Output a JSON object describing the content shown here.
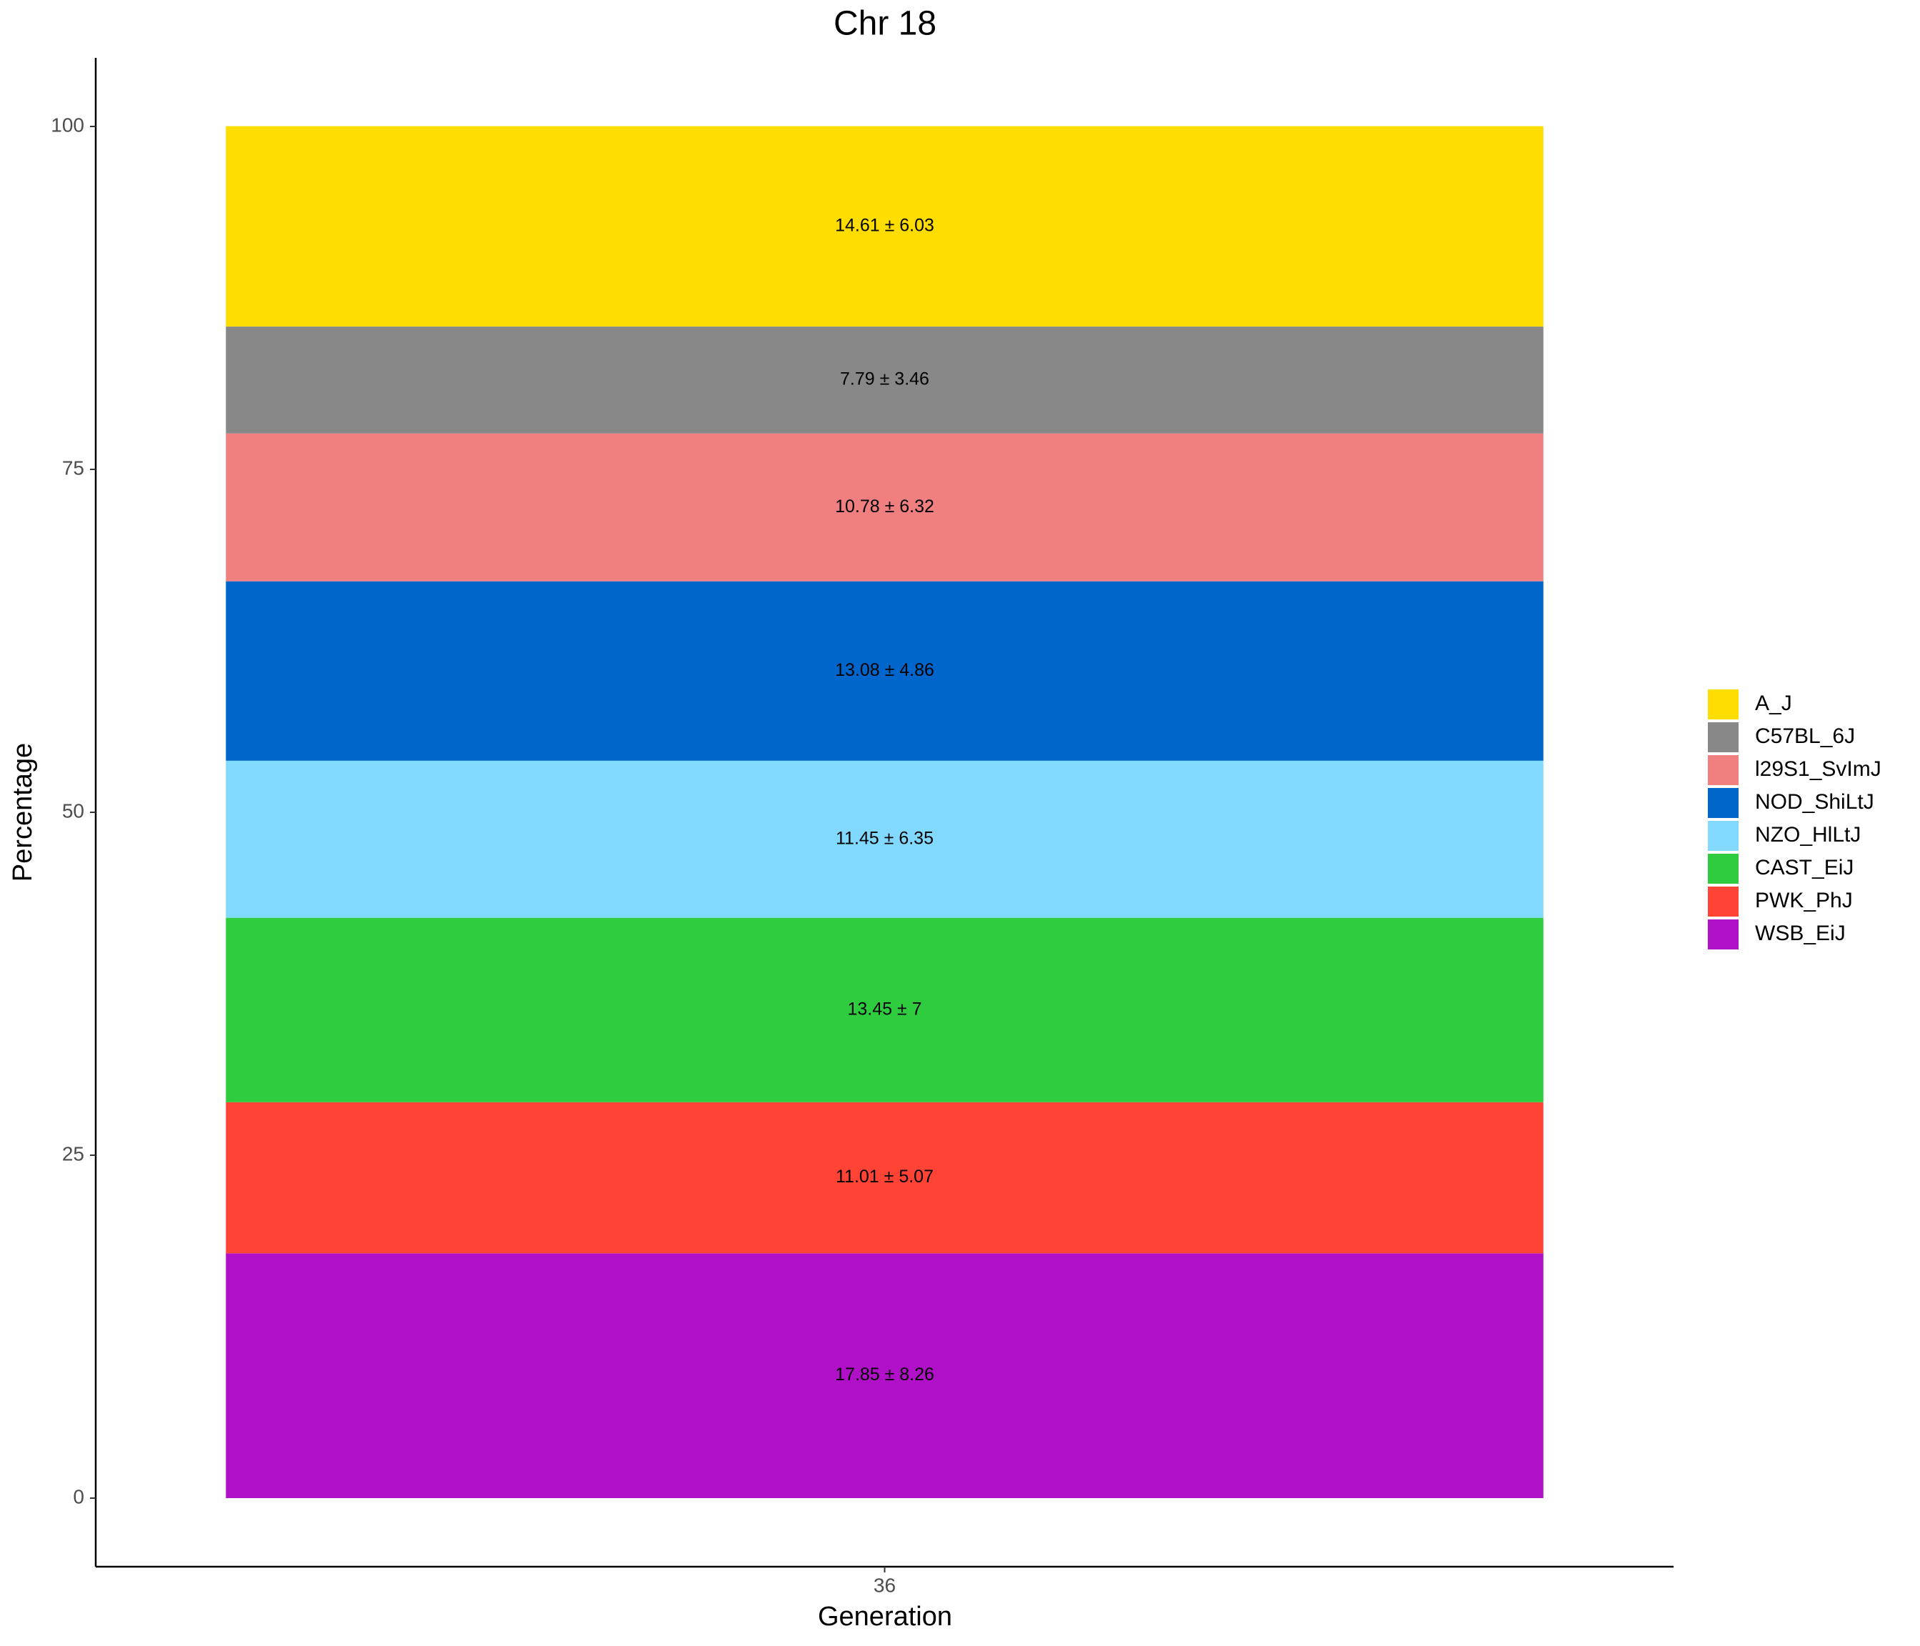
{
  "chart_data": {
    "type": "stacked_bar",
    "title": "Chr 18",
    "x_label": "Generation",
    "y_label": "Percentage",
    "categories": [
      "36"
    ],
    "series": [
      {
        "name": "A_J",
        "color": "#ffdd00",
        "values": [
          14.61
        ],
        "value_labels": [
          "14.61 ± 6.03"
        ]
      },
      {
        "name": "C57BL_6J",
        "color": "#888888",
        "values": [
          7.79
        ],
        "value_labels": [
          "7.79 ± 3.46"
        ]
      },
      {
        "name": "l29S1_SvImJ",
        "color": "#f08080",
        "values": [
          10.78
        ],
        "value_labels": [
          "10.78 ± 6.32"
        ]
      },
      {
        "name": "NOD_ShiLtJ",
        "color": "#0066cc",
        "values": [
          13.08
        ],
        "value_labels": [
          "13.08 ± 4.86"
        ]
      },
      {
        "name": "NZO_HlLtJ",
        "color": "#82d9ff",
        "values": [
          11.45
        ],
        "value_labels": [
          "11.45 ± 6.35"
        ]
      },
      {
        "name": "CAST_EiJ",
        "color": "#30cc40",
        "values": [
          13.45
        ],
        "value_labels": [
          "13.45 ± 7"
        ]
      },
      {
        "name": "PWK_PhJ",
        "color": "#ff4436",
        "values": [
          11.01
        ],
        "value_labels": [
          "11.01 ± 5.07"
        ]
      },
      {
        "name": "WSB_EiJ",
        "color": "#b010c8",
        "values": [
          17.85
        ],
        "value_labels": [
          "17.85 ± 8.26"
        ]
      }
    ],
    "ylim": [
      -5,
      105
    ],
    "yticks": [
      0,
      25,
      50,
      75,
      100
    ],
    "grid": false,
    "legend": "right"
  }
}
